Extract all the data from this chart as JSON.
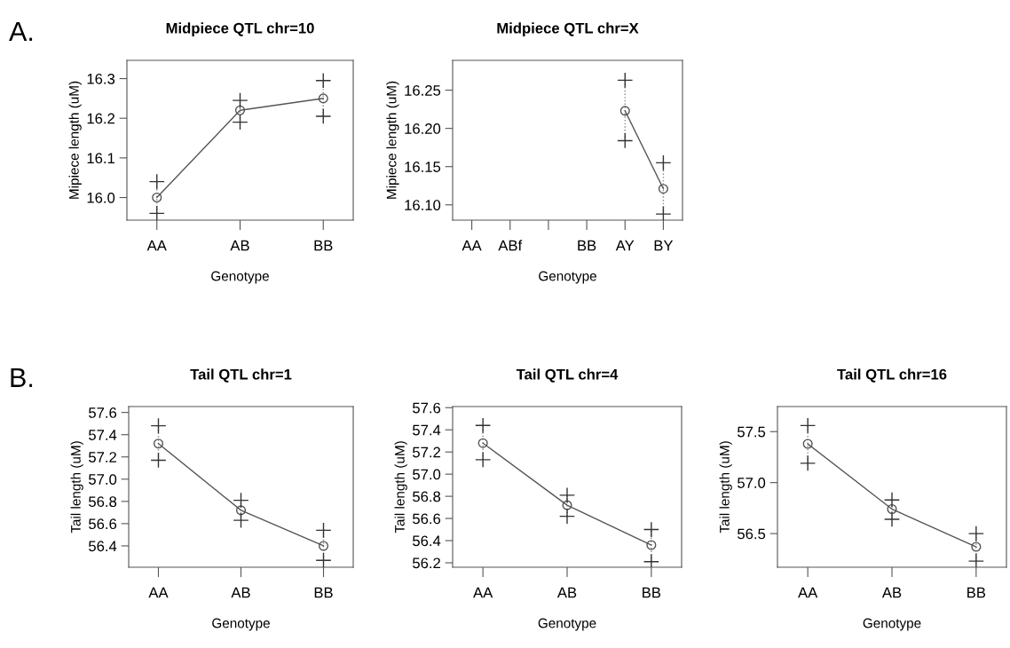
{
  "chart_data": [
    {
      "type": "line",
      "title": "Midpiece QTL chr=10",
      "xlabel": "Genotype",
      "ylabel": "Mipiece length (uM)",
      "annotations": [
        "A."
      ],
      "categories": [
        "AA",
        "AB",
        "BB"
      ],
      "ylim": [
        15.943,
        16.346
      ],
      "yticks": [
        {
          "value": 16.0,
          "label": "16.0"
        },
        {
          "value": 16.1,
          "label": "16.1"
        },
        {
          "value": 16.2,
          "label": "16.2"
        },
        {
          "value": 16.3,
          "label": "16.3"
        }
      ],
      "marker": "circle",
      "grid": false,
      "series": [
        {
          "color": "#555555",
          "values": [
            16.0,
            16.22,
            16.25
          ],
          "errors": [
            [
              15.96,
              16.04
            ],
            [
              16.19,
              16.245
            ],
            [
              16.205,
              16.295
            ]
          ]
        }
      ]
    },
    {
      "type": "line",
      "title": "Midpiece QTL chr=X",
      "xlabel": "Genotype",
      "ylabel": "Mipiece length (uM)",
      "categories": [
        "AA",
        "ABf",
        null,
        "BB",
        "AY",
        "BY"
      ],
      "ylim": [
        16.08,
        16.289
      ],
      "yticks": [
        {
          "value": 16.1,
          "label": "16.10"
        },
        {
          "value": 16.15,
          "label": "16.15"
        },
        {
          "value": 16.2,
          "label": "16.20"
        },
        {
          "value": 16.25,
          "label": "16.25"
        }
      ],
      "marker": "circle",
      "grid": false,
      "series": [
        {
          "color": "#555555",
          "values": [
            null,
            null,
            null,
            null,
            16.223,
            16.121
          ],
          "errors": [
            null,
            null,
            null,
            null,
            [
              16.184,
              16.263
            ],
            [
              16.088,
              16.155
            ]
          ]
        }
      ]
    },
    {
      "type": "line",
      "title": "Tail QTL chr=1",
      "xlabel": "Genotype",
      "ylabel": "Tail length (uM)",
      "annotations": [
        "B."
      ],
      "categories": [
        "AA",
        "AB",
        "BB"
      ],
      "ylim": [
        56.208,
        57.653
      ],
      "yticks": [
        {
          "value": 56.4,
          "label": "56.4"
        },
        {
          "value": 56.6,
          "label": "56.6"
        },
        {
          "value": 56.8,
          "label": "56.8"
        },
        {
          "value": 57.0,
          "label": "57.0"
        },
        {
          "value": 57.2,
          "label": "57.2"
        },
        {
          "value": 57.4,
          "label": "57.4"
        },
        {
          "value": 57.6,
          "label": "57.6"
        }
      ],
      "marker": "circle",
      "grid": false,
      "series": [
        {
          "color": "#555555",
          "values": [
            57.32,
            56.72,
            56.4
          ],
          "errors": [
            [
              57.17,
              57.48
            ],
            [
              56.63,
              56.81
            ],
            [
              56.27,
              56.54
            ]
          ]
        }
      ]
    },
    {
      "type": "line",
      "title": "Tail QTL chr=4",
      "xlabel": "Genotype",
      "ylabel": "Tail length (uM)",
      "categories": [
        "AA",
        "AB",
        "BB"
      ],
      "ylim": [
        56.16,
        57.61
      ],
      "yticks": [
        {
          "value": 56.2,
          "label": "56.2"
        },
        {
          "value": 56.4,
          "label": "56.4"
        },
        {
          "value": 56.6,
          "label": "56.6"
        },
        {
          "value": 56.8,
          "label": "56.8"
        },
        {
          "value": 57.0,
          "label": "57.0"
        },
        {
          "value": 57.2,
          "label": "57.2"
        },
        {
          "value": 57.4,
          "label": "57.4"
        },
        {
          "value": 57.6,
          "label": "57.6"
        }
      ],
      "marker": "circle",
      "grid": false,
      "series": [
        {
          "color": "#555555",
          "values": [
            57.28,
            56.72,
            56.36
          ],
          "errors": [
            [
              57.13,
              57.44
            ],
            [
              56.62,
              56.81
            ],
            [
              56.21,
              56.5
            ]
          ]
        }
      ]
    },
    {
      "type": "line",
      "title": "Tail QTL chr=16",
      "xlabel": "Genotype",
      "ylabel": "Tail length (uM)",
      "categories": [
        "AA",
        "AB",
        "BB"
      ],
      "ylim": [
        56.17,
        57.746
      ],
      "yticks": [
        {
          "value": 56.5,
          "label": "56.5"
        },
        {
          "value": 57.0,
          "label": "57.0"
        },
        {
          "value": 57.5,
          "label": "57.5"
        }
      ],
      "marker": "circle",
      "grid": false,
      "series": [
        {
          "color": "#555555",
          "values": [
            57.38,
            56.74,
            56.37
          ],
          "errors": [
            [
              57.19,
              57.56
            ],
            [
              56.64,
              56.83
            ],
            [
              56.23,
              56.5
            ]
          ]
        }
      ]
    }
  ]
}
